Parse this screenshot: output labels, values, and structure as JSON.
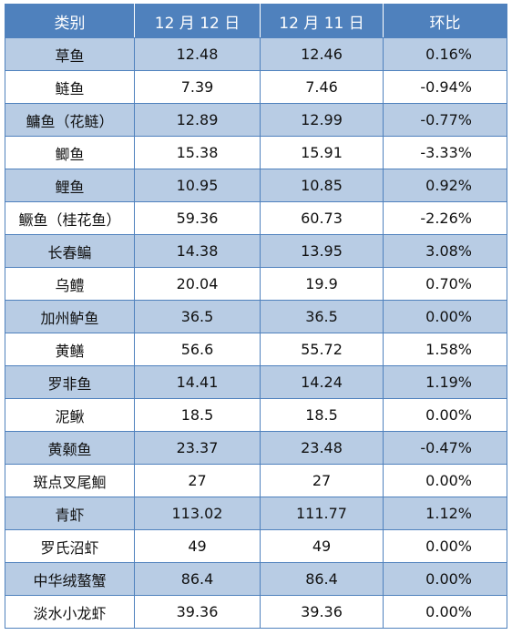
{
  "header": {
    "category": "类别",
    "date_current": "12 月 12 日",
    "date_previous": "12 月 11 日",
    "change": "环比"
  },
  "rows": [
    {
      "name": "草鱼",
      "current": "12.48",
      "previous": "12.46",
      "change": "0.16%"
    },
    {
      "name": "鲢鱼",
      "current": "7.39",
      "previous": "7.46",
      "change": "-0.94%"
    },
    {
      "name": "鳙鱼（花鲢）",
      "current": "12.89",
      "previous": "12.99",
      "change": "-0.77%"
    },
    {
      "name": "鲫鱼",
      "current": "15.38",
      "previous": "15.91",
      "change": "-3.33%"
    },
    {
      "name": "鲤鱼",
      "current": "10.95",
      "previous": "10.85",
      "change": "0.92%"
    },
    {
      "name": "鳜鱼（桂花鱼）",
      "current": "59.36",
      "previous": "60.73",
      "change": "-2.26%"
    },
    {
      "name": "长春鳊",
      "current": "14.38",
      "previous": "13.95",
      "change": "3.08%"
    },
    {
      "name": "乌鳢",
      "current": "20.04",
      "previous": "19.9",
      "change": "0.70%"
    },
    {
      "name": "加州鲈鱼",
      "current": "36.5",
      "previous": "36.5",
      "change": "0.00%"
    },
    {
      "name": "黄鳝",
      "current": "56.6",
      "previous": "55.72",
      "change": "1.58%"
    },
    {
      "name": "罗非鱼",
      "current": "14.41",
      "previous": "14.24",
      "change": "1.19%"
    },
    {
      "name": "泥鳅",
      "current": "18.5",
      "previous": "18.5",
      "change": "0.00%"
    },
    {
      "name": "黄颡鱼",
      "current": "23.37",
      "previous": "23.48",
      "change": "-0.47%"
    },
    {
      "name": "斑点叉尾鮰",
      "current": "27",
      "previous": "27",
      "change": "0.00%"
    },
    {
      "name": "青虾",
      "current": "113.02",
      "previous": "111.77",
      "change": "1.12%"
    },
    {
      "name": "罗氏沼虾",
      "current": "49",
      "previous": "49",
      "change": "0.00%"
    },
    {
      "name": "中华绒螯蟹",
      "current": "86.4",
      "previous": "86.4",
      "change": "0.00%"
    },
    {
      "name": "淡水小龙虾",
      "current": "39.36",
      "previous": "39.36",
      "change": "0.00%"
    }
  ],
  "colors": {
    "header_bg": "#4f81bd",
    "stripe_bg": "#b8cce4",
    "border": "#4f81bd"
  }
}
